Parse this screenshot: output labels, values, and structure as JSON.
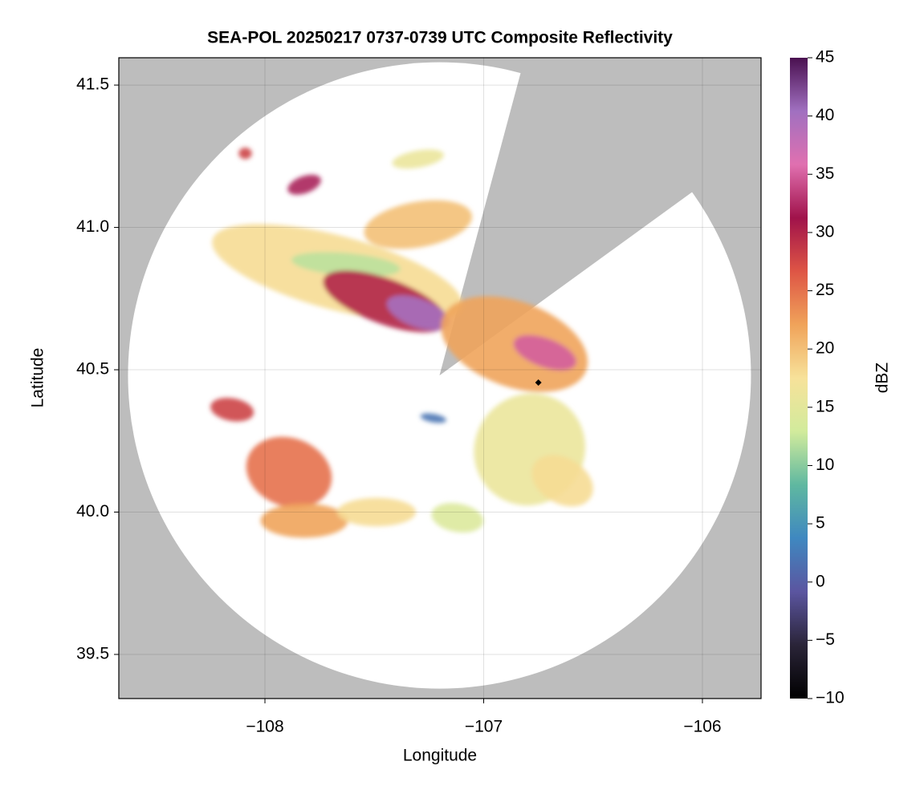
{
  "chart_data": {
    "type": "radar-map",
    "title": "SEA-POL 20250217 0737-0739 UTC Composite Reflectivity",
    "xlabel": "Longitude",
    "ylabel": "Latitude",
    "xlim": [
      -108.668,
      -105.732
    ],
    "ylim": [
      39.345,
      41.596
    ],
    "xticks": [
      {
        "value": -108,
        "label": "−108"
      },
      {
        "value": -107,
        "label": "−107"
      },
      {
        "value": -106,
        "label": "−106"
      }
    ],
    "yticks": [
      39.5,
      {
        "value": 40,
        "label": "40.0"
      },
      40.5,
      {
        "value": 41,
        "label": "41.0"
      },
      41.5
    ],
    "grid": true,
    "radar": {
      "lon": -107.202,
      "lat": 40.48,
      "range_lon_deg": 1.424,
      "range_lat_deg": 1.1,
      "blocked_azimuth_deg": [
        15,
        54
      ]
    },
    "marker": {
      "lon": -106.75,
      "lat": 40.455
    },
    "colorbar": {
      "label": "dBZ",
      "lim": [
        -10,
        45
      ],
      "ticks": [
        {
          "value": -10,
          "label": "−10"
        },
        {
          "value": -5,
          "label": "−5"
        },
        0,
        5,
        10,
        15,
        20,
        25,
        30,
        35,
        40,
        45
      ],
      "colormap": [
        "#000000",
        "#2a2438",
        "#5b55a0",
        "#3f88c0",
        "#5fb8a0",
        "#d2eb9c",
        "#f7e29a",
        "#f0a35a",
        "#de5545",
        "#a0124a",
        "#e070b0",
        "#a070c0",
        "#4a1050"
      ]
    },
    "echoes": [
      {
        "lon": -107.67,
        "lat": 40.84,
        "rx": 0.59,
        "ry": 0.13,
        "angle": 15,
        "dbz": 18
      },
      {
        "lon": -107.3,
        "lat": 41.01,
        "rx": 0.25,
        "ry": 0.08,
        "angle": -10,
        "dbz": 20
      },
      {
        "lon": -107.63,
        "lat": 40.87,
        "rx": 0.25,
        "ry": 0.04,
        "angle": 5,
        "dbz": 12
      },
      {
        "lon": -107.45,
        "lat": 40.74,
        "rx": 0.3,
        "ry": 0.08,
        "angle": 20,
        "dbz": 30
      },
      {
        "lon": -107.3,
        "lat": 40.7,
        "rx": 0.15,
        "ry": 0.05,
        "angle": 20,
        "dbz": 40
      },
      {
        "lon": -106.86,
        "lat": 40.59,
        "rx": 0.35,
        "ry": 0.15,
        "angle": 20,
        "dbz": 22
      },
      {
        "lon": -106.72,
        "lat": 40.56,
        "rx": 0.15,
        "ry": 0.05,
        "angle": 20,
        "dbz": 35
      },
      {
        "lon": -106.79,
        "lat": 40.22,
        "rx": 0.25,
        "ry": 0.2,
        "angle": 40,
        "dbz": 16
      },
      {
        "lon": -106.64,
        "lat": 40.11,
        "rx": 0.15,
        "ry": 0.08,
        "angle": 30,
        "dbz": 18
      },
      {
        "lon": -107.89,
        "lat": 40.14,
        "rx": 0.2,
        "ry": 0.12,
        "angle": 20,
        "dbz": 25
      },
      {
        "lon": -108.15,
        "lat": 40.36,
        "rx": 0.1,
        "ry": 0.04,
        "angle": 10,
        "dbz": 28
      },
      {
        "lon": -107.82,
        "lat": 39.97,
        "rx": 0.2,
        "ry": 0.06,
        "angle": 0,
        "dbz": 22
      },
      {
        "lon": -107.49,
        "lat": 40.0,
        "rx": 0.18,
        "ry": 0.05,
        "angle": 0,
        "dbz": 18
      },
      {
        "lon": -107.12,
        "lat": 39.98,
        "rx": 0.12,
        "ry": 0.05,
        "angle": 10,
        "dbz": 14
      },
      {
        "lon": -108.09,
        "lat": 41.26,
        "rx": 0.03,
        "ry": 0.02,
        "angle": 0,
        "dbz": 28
      },
      {
        "lon": -107.82,
        "lat": 41.15,
        "rx": 0.08,
        "ry": 0.03,
        "angle": -20,
        "dbz": 32
      },
      {
        "lon": -107.23,
        "lat": 40.33,
        "rx": 0.06,
        "ry": 0.015,
        "angle": 10,
        "dbz": 2
      },
      {
        "lon": -107.3,
        "lat": 41.24,
        "rx": 0.12,
        "ry": 0.03,
        "angle": -10,
        "dbz": 16
      }
    ]
  }
}
